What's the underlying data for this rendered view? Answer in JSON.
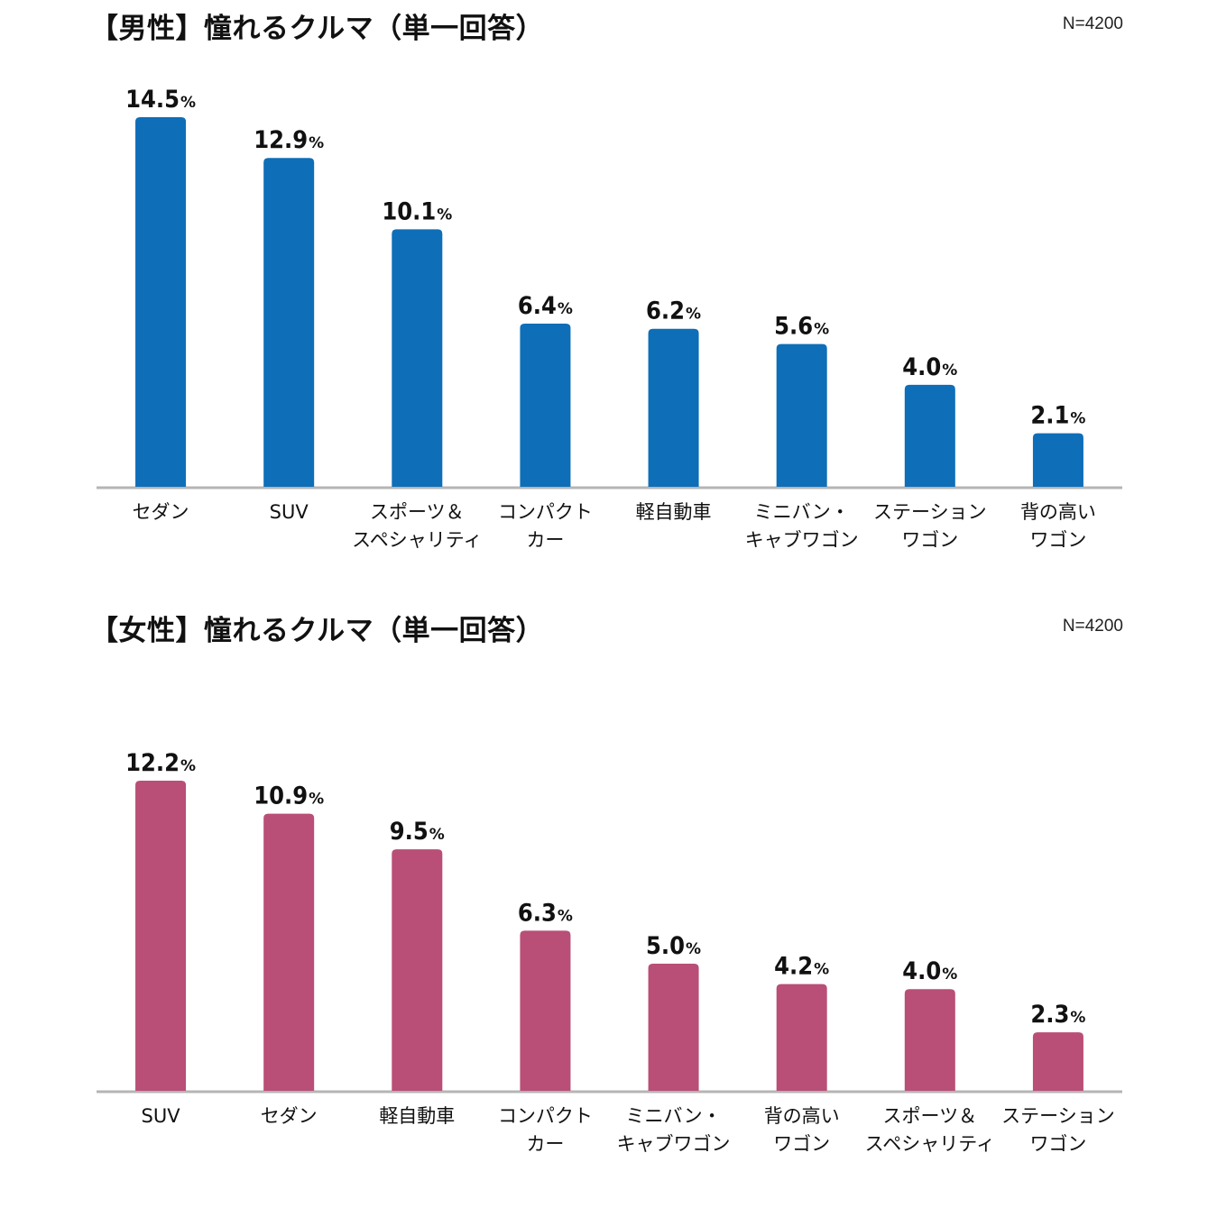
{
  "chart_data": [
    {
      "type": "bar",
      "title": "【男性】憧れるクルマ（単一回答）",
      "n_label": "N=4200",
      "color": "#0E6EB8",
      "unit": "%",
      "categories": [
        [
          "セダン"
        ],
        [
          "SUV"
        ],
        [
          "スポーツ＆",
          "スペシャリティ"
        ],
        [
          "コンパクト",
          "カー"
        ],
        [
          "軽自動車"
        ],
        [
          "ミニバン・",
          "キャブワゴン"
        ],
        [
          "ステーション",
          "ワゴン"
        ],
        [
          "背の高い",
          "ワゴン"
        ]
      ],
      "values": [
        14.5,
        12.9,
        10.1,
        6.4,
        6.2,
        5.6,
        4.0,
        2.1
      ],
      "value_labels": [
        "14.5",
        "12.9",
        "10.1",
        "6.4",
        "6.2",
        "5.6",
        "4.0",
        "2.1"
      ],
      "ylim": [
        0,
        14.5
      ]
    },
    {
      "type": "bar",
      "title": "【女性】憧れるクルマ（単一回答）",
      "n_label": "N=4200",
      "color": "#B94E76",
      "unit": "%",
      "categories": [
        [
          "SUV"
        ],
        [
          "セダン"
        ],
        [
          "軽自動車"
        ],
        [
          "コンパクト",
          "カー"
        ],
        [
          "ミニバン・",
          "キャブワゴン"
        ],
        [
          "背の高い",
          "ワゴン"
        ],
        [
          "スポーツ＆",
          "スペシャリティ"
        ],
        [
          "ステーション",
          "ワゴン"
        ]
      ],
      "values": [
        12.2,
        10.9,
        9.5,
        6.3,
        5.0,
        4.2,
        4.0,
        2.3
      ],
      "value_labels": [
        "12.2",
        "10.9",
        "9.5",
        "6.3",
        "5.0",
        "4.2",
        "4.0",
        "2.3"
      ],
      "ylim": [
        0,
        12.2
      ]
    }
  ]
}
